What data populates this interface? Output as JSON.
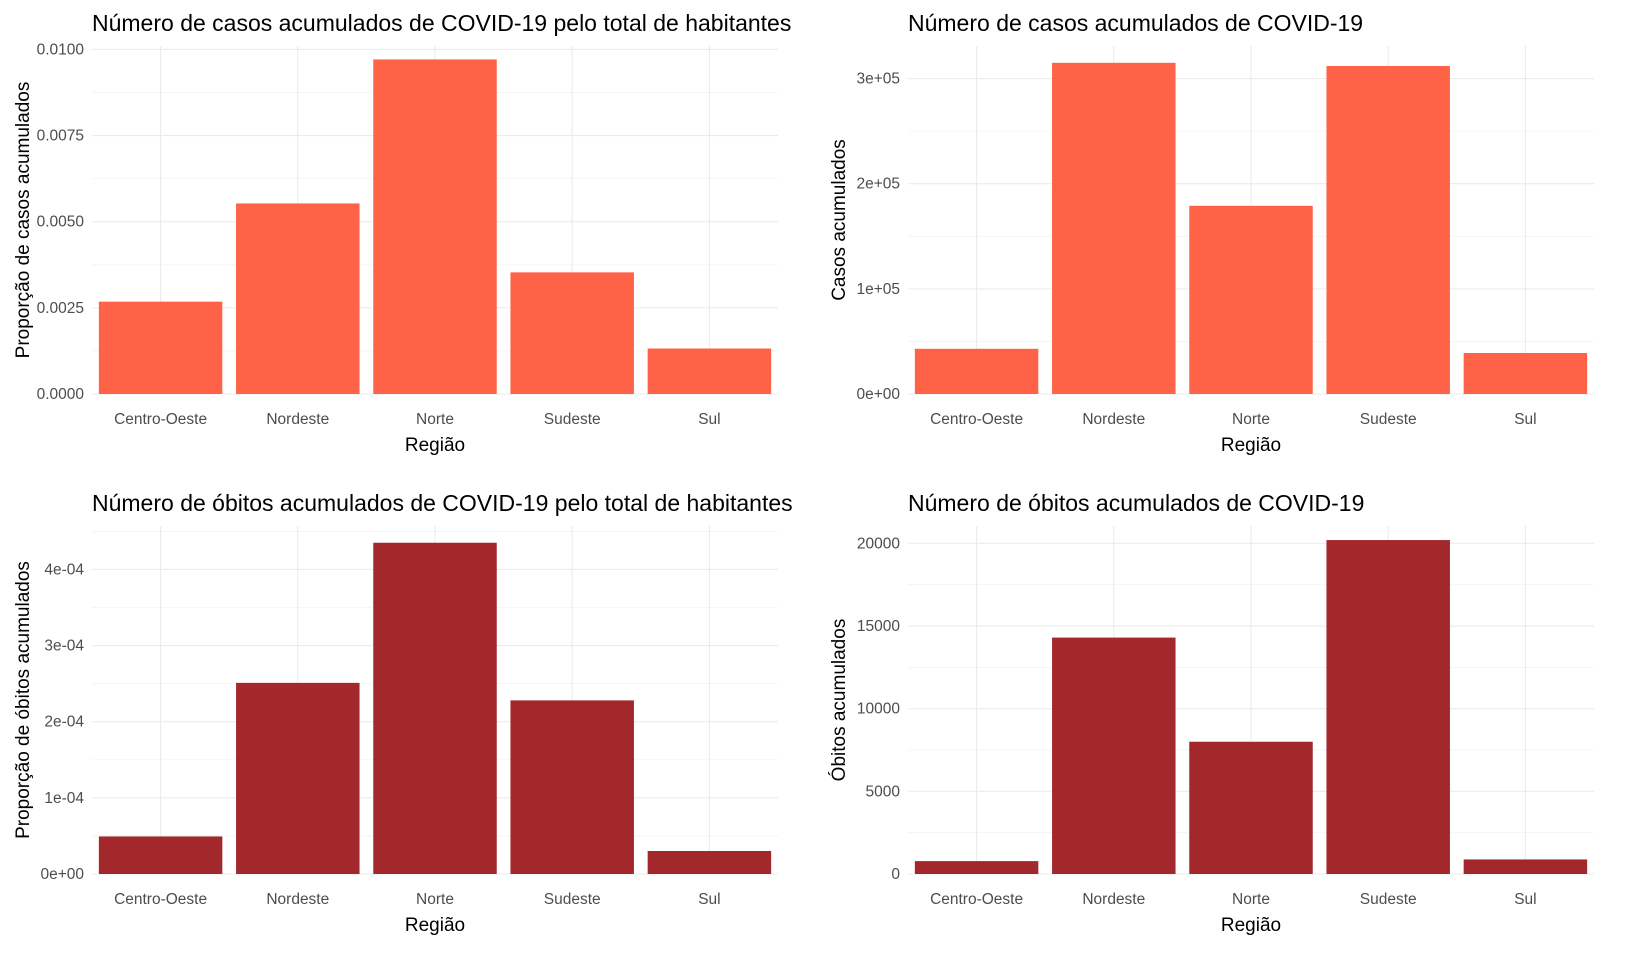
{
  "chart_data": [
    {
      "type": "bar",
      "title": "Número de casos acumulados de COVID-19 pelo total de habitantes",
      "xlabel": "Região",
      "ylabel": "Proporção de casos acumulados",
      "categories": [
        "Centro-Oeste",
        "Nordeste",
        "Norte",
        "Sudeste",
        "Sul"
      ],
      "values": [
        0.00268,
        0.00553,
        0.00971,
        0.00353,
        0.00132
      ],
      "ylim": [
        0,
        0.0101
      ],
      "yticks": [
        0,
        0.0025,
        0.005,
        0.0075,
        0.01
      ],
      "ytick_labels": [
        "0.0000",
        "0.0025",
        "0.0050",
        "0.0075",
        "0.0100"
      ],
      "bar_color": "#FF6347",
      "grid": true
    },
    {
      "type": "bar",
      "title": "Número de casos acumulados de COVID-19",
      "xlabel": "Região",
      "ylabel": "Casos acumulados",
      "categories": [
        "Centro-Oeste",
        "Nordeste",
        "Norte",
        "Sudeste",
        "Sul"
      ],
      "values": [
        43000,
        315000,
        179000,
        312000,
        39000
      ],
      "ylim": [
        0,
        331000
      ],
      "yticks": [
        0,
        100000,
        200000,
        300000
      ],
      "ytick_labels": [
        "0e+00",
        "1e+05",
        "2e+05",
        "3e+05"
      ],
      "bar_color": "#FF6347",
      "grid": true
    },
    {
      "type": "bar",
      "title": "Número de óbitos acumulados de COVID-19 pelo total de habitantes",
      "xlabel": "Região",
      "ylabel": "Proporção de óbitos acumulados",
      "categories": [
        "Centro-Oeste",
        "Nordeste",
        "Norte",
        "Sudeste",
        "Sul"
      ],
      "values": [
        4.93e-05,
        0.000251,
        0.000435,
        0.000228,
        3.02e-05
      ],
      "ylim": [
        0,
        0.000457
      ],
      "yticks": [
        0,
        0.0001,
        0.0002,
        0.0003,
        0.0004
      ],
      "ytick_labels": [
        "0e+00",
        "1e-04",
        "2e-04",
        "3e-04",
        "4e-04"
      ],
      "bar_color": "#A2282C",
      "grid": true
    },
    {
      "type": "bar",
      "title": "Número de óbitos acumulados de COVID-19",
      "xlabel": "Região",
      "ylabel": "Óbitos acumulados",
      "categories": [
        "Centro-Oeste",
        "Nordeste",
        "Norte",
        "Sudeste",
        "Sul"
      ],
      "values": [
        780,
        14300,
        8000,
        20200,
        880
      ],
      "ylim": [
        0,
        21050
      ],
      "yticks": [
        0,
        5000,
        10000,
        15000,
        20000
      ],
      "ytick_labels": [
        "0",
        "5000",
        "10000",
        "15000",
        "20000"
      ],
      "bar_color": "#A2282C",
      "grid": true
    }
  ]
}
